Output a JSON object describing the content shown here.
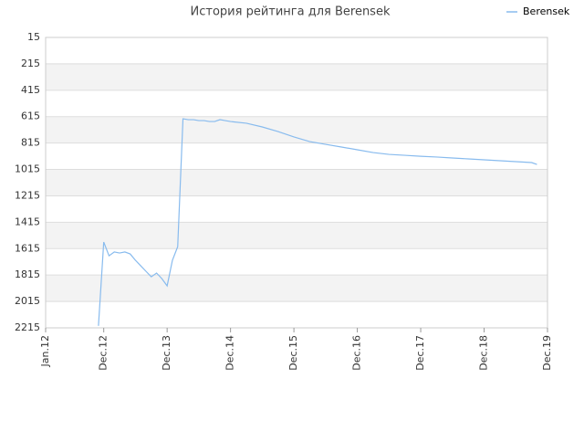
{
  "chart_data": {
    "type": "line",
    "title": "История рейтинга для Berensek",
    "x": [
      "2012-11",
      "2012-12",
      "2013-01",
      "2013-02",
      "2013-03",
      "2013-04",
      "2013-05",
      "2013-06",
      "2013-07",
      "2013-08",
      "2013-09",
      "2013-10",
      "2013-11",
      "2013-12",
      "2014-01",
      "2014-02",
      "2014-03",
      "2014-04",
      "2014-05",
      "2014-06",
      "2014-07",
      "2014-08",
      "2014-09",
      "2014-10",
      "2014-11",
      "2014-12",
      "2015-03",
      "2015-06",
      "2015-09",
      "2015-12",
      "2016-03",
      "2016-06",
      "2016-09",
      "2016-12",
      "2017-03",
      "2017-06",
      "2017-09",
      "2017-12",
      "2018-03",
      "2018-06",
      "2018-09",
      "2018-12",
      "2019-03",
      "2019-06",
      "2019-09",
      "2019-10"
    ],
    "series": [
      {
        "name": "Berensek",
        "color": "#88bbee",
        "values": [
          2200,
          1565,
          1669,
          1640,
          1648,
          1640,
          1655,
          1703,
          1745,
          1787,
          1828,
          1800,
          1842,
          1897,
          1703,
          1600,
          631,
          638,
          638,
          645,
          645,
          652,
          652,
          638,
          645,
          652,
          665,
          693,
          728,
          769,
          804,
          825,
          845,
          866,
          887,
          901,
          908,
          915,
          921,
          928,
          935,
          942,
          949,
          956,
          963,
          977
        ]
      }
    ],
    "xlim": [
      "2012-01",
      "2019-12"
    ],
    "xticks": [
      {
        "value": "2012-01",
        "label": "Jan.12"
      },
      {
        "value": "2012-12",
        "label": "Dec.12"
      },
      {
        "value": "2013-12",
        "label": "Dec.13"
      },
      {
        "value": "2014-12",
        "label": "Dec.14"
      },
      {
        "value": "2015-12",
        "label": "Dec.15"
      },
      {
        "value": "2016-12",
        "label": "Dec.16"
      },
      {
        "value": "2017-12",
        "label": "Dec.17"
      },
      {
        "value": "2018-12",
        "label": "Dec.18"
      },
      {
        "value": "2019-12",
        "label": "Dec.19"
      }
    ],
    "ylim": [
      15,
      2215
    ],
    "y_inverted": true,
    "yticks": [
      15,
      215,
      415,
      615,
      815,
      1015,
      1215,
      1415,
      1615,
      1815,
      2015,
      2215
    ],
    "grid": true,
    "legend": "top-right"
  }
}
